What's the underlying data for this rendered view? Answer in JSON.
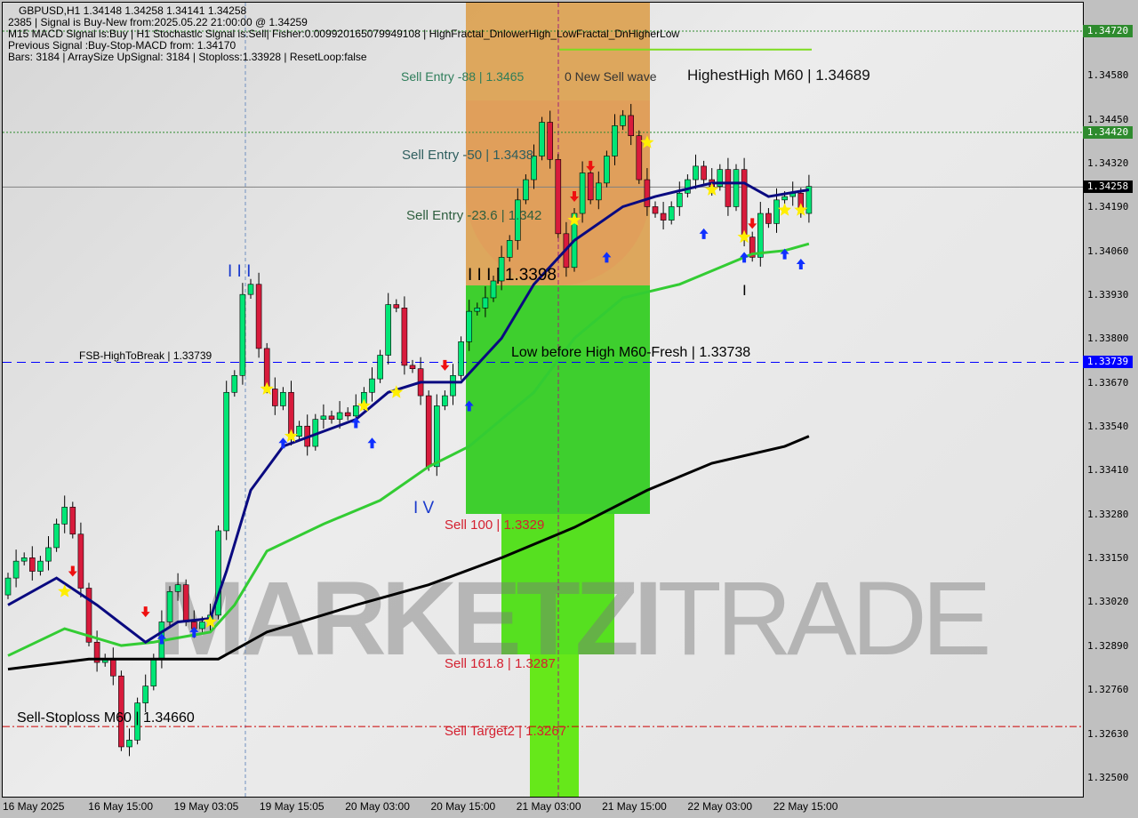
{
  "header": {
    "line1": "GBPUSD,H1  1.34148 1.34258 1.34141 1.34258",
    "line2": "2385 | Signal is Buy-New from:2025.05.22 21:00:00 @ 1.34259",
    "line3": "M15 MACD Signal is:Buy | H1 Stochastic Signal is:Sell| Fisher:0.00992016507994910​8 | HighFractal_DnlowerHigh_LowFractal_DnHigherLow",
    "line4": "Previous Signal :Buy-Stop-MACD from: 1.34170",
    "line5": "Bars: 3184 | ArraySize UpSignal: 3184 | Stoploss:1.33928 | ResetLoop:false"
  },
  "labels": {
    "new_sell_wave": "0 New Sell wave",
    "highest_high": "HighestHigh   M60 | 1.34689",
    "sell_entry_88": "Sell Entry -88 | 1.3465",
    "sell_entry_50": "Sell Entry -50 | 1.3438",
    "sell_entry_236": "Sell Entry -23.6 | 1.342",
    "wave3_price": "I I I | 1.3398",
    "wave3": "I I I",
    "wave4": "I V",
    "wave1": "I",
    "low_before_high": "Low before High   M60-Fresh | 1.33738",
    "fsb_high": "FSB-HighToBreak | 1.33739",
    "sell_100": "Sell 100 | 1.3329",
    "sell_1618": "Sell 161.8 | 1.3287",
    "sell_target2": "Sell Target2 | 1.3267",
    "sell_stoploss": "Sell-Stoploss M60 | 1.34660"
  },
  "watermark": {
    "bold": "MARKETZI",
    "thin": "TRADE"
  },
  "price_axis": {
    "ticks": [
      "1.34580",
      "1.34450",
      "1.34320",
      "1.34190",
      "1.34060",
      "1.33930",
      "1.33800",
      "1.33670",
      "1.33540",
      "1.33410",
      "1.33280",
      "1.33150",
      "1.33020",
      "1.32890",
      "1.32760",
      "1.32630",
      "1.32500"
    ],
    "markers": [
      {
        "value": "1.34720",
        "color": "#2e8b2e"
      },
      {
        "value": "1.34420",
        "color": "#2e8b2e"
      },
      {
        "value": "1.34258",
        "color": "#000000"
      },
      {
        "value": "1.33739",
        "color": "#0000ff"
      }
    ]
  },
  "time_axis": [
    "16 May 2025",
    "16 May 15:00",
    "19 May 03:05",
    "19 May 15:05",
    "20 May 03:00",
    "20 May 15:00",
    "21 May 03:00",
    "21 May 15:00",
    "22 May 03:00",
    "22 May 15:00"
  ],
  "chart_data": {
    "type": "candlestick",
    "symbol": "GBPUSD",
    "timeframe": "H1",
    "ylim": [
      1.3245,
      1.3484
    ],
    "colors": {
      "up": "#00e676",
      "down": "#d81b3c",
      "ma_fast": "#0a0a80",
      "ma_mid": "#33cc33",
      "ma_slow": "#000000"
    },
    "open_first": 1.3305,
    "close": [
      1.331,
      1.3315,
      1.3316,
      1.3312,
      1.3315,
      1.3319,
      1.3326,
      1.3331,
      1.3323,
      1.3307,
      1.3291,
      1.3285,
      1.3286,
      1.3281,
      1.326,
      1.3262,
      1.3273,
      1.3278,
      1.3286,
      1.3297,
      1.3306,
      1.3308,
      1.3297,
      1.3295,
      1.3297,
      1.3299,
      1.3324,
      1.3365,
      1.337,
      1.3394,
      1.3397,
      1.3378,
      1.3366,
      1.3361,
      1.3365,
      1.3352,
      1.3355,
      1.3349,
      1.3357,
      1.3358,
      1.3357,
      1.3359,
      1.3358,
      1.3361,
      1.3365,
      1.3369,
      1.3376,
      1.3391,
      1.339,
      1.3373,
      1.3372,
      1.3364,
      1.3343,
      1.3361,
      1.3364,
      1.337,
      1.338,
      1.3389,
      1.339,
      1.3393,
      1.3398,
      1.3405,
      1.341,
      1.3422,
      1.3428,
      1.3435,
      1.3445,
      1.3434,
      1.3412,
      1.3402,
      1.3418,
      1.343,
      1.3422,
      1.3427,
      1.3435,
      1.3444,
      1.3447,
      1.3441,
      1.3428,
      1.342,
      1.3418,
      1.3416,
      1.342,
      1.3424,
      1.3428,
      1.3432,
      1.3428,
      1.3426,
      1.3431,
      1.342,
      1.3431,
      1.3411,
      1.3405,
      1.3418,
      1.3415,
      1.3422,
      1.3423,
      1.3424,
      1.3418,
      1.3426
    ],
    "ma_fast": [
      [
        1,
        1.3302
      ],
      [
        7,
        1.331
      ],
      [
        12,
        1.3302
      ],
      [
        18,
        1.3291
      ],
      [
        22,
        1.3297
      ],
      [
        26,
        1.3298
      ],
      [
        28,
        1.3312
      ],
      [
        31,
        1.3336
      ],
      [
        35,
        1.3349
      ],
      [
        44,
        1.3357
      ],
      [
        48,
        1.3365
      ],
      [
        52,
        1.3368
      ],
      [
        57,
        1.3368
      ],
      [
        62,
        1.3381
      ],
      [
        66,
        1.3397
      ],
      [
        71,
        1.341
      ],
      [
        77,
        1.342
      ],
      [
        81,
        1.3423
      ],
      [
        88,
        1.3427
      ],
      [
        92,
        1.3427
      ],
      [
        95,
        1.3423
      ],
      [
        100,
        1.3425
      ]
    ],
    "ma_mid": [
      [
        1,
        1.3287
      ],
      [
        8,
        1.3295
      ],
      [
        15,
        1.329
      ],
      [
        19,
        1.3291
      ],
      [
        26,
        1.3294
      ],
      [
        29,
        1.3302
      ],
      [
        33,
        1.3318
      ],
      [
        40,
        1.3326
      ],
      [
        47,
        1.3333
      ],
      [
        53,
        1.3343
      ],
      [
        58,
        1.3349
      ],
      [
        62,
        1.3357
      ],
      [
        66,
        1.3365
      ],
      [
        71,
        1.3381
      ],
      [
        77,
        1.3393
      ],
      [
        84,
        1.3397
      ],
      [
        88,
        1.3401
      ],
      [
        93,
        1.3406
      ],
      [
        97,
        1.3407
      ],
      [
        100,
        1.3409
      ]
    ],
    "ma_slow": [
      [
        1,
        1.3283
      ],
      [
        11,
        1.3286
      ],
      [
        27,
        1.3286
      ],
      [
        33,
        1.3294
      ],
      [
        44,
        1.3302
      ],
      [
        53,
        1.3308
      ],
      [
        62,
        1.3316
      ],
      [
        71,
        1.3325
      ],
      [
        80,
        1.3336
      ],
      [
        88,
        1.3344
      ],
      [
        97,
        1.3349
      ],
      [
        100,
        1.3352
      ]
    ],
    "levels": [
      {
        "price": 1.3472,
        "color": "#2e8b2e",
        "style": "dotted"
      },
      {
        "price": 1.3442,
        "color": "#2e8b2e",
        "style": "dotted"
      },
      {
        "price": 1.34258,
        "color": "#808080",
        "style": "solid"
      },
      {
        "price": 1.33739,
        "color": "#0000ff",
        "style": "dashed"
      },
      {
        "price": 1.3266,
        "color": "#cc0000",
        "style": "dashdot"
      }
    ],
    "signals": [
      {
        "bar": 9,
        "price": 1.3312,
        "type": "sell-arrow"
      },
      {
        "bar": 18,
        "price": 1.33,
        "type": "sell-arrow"
      },
      {
        "bar": 55,
        "price": 1.3373,
        "type": "sell-arrow"
      },
      {
        "bar": 73,
        "price": 1.3432,
        "type": "sell-arrow"
      },
      {
        "bar": 71,
        "price": 1.3423,
        "type": "sell-arrow"
      },
      {
        "bar": 93,
        "price": 1.3415,
        "type": "sell-arrow"
      },
      {
        "bar": 20,
        "price": 1.3292,
        "type": "buy-arrow"
      },
      {
        "bar": 24,
        "price": 1.3294,
        "type": "buy-arrow"
      },
      {
        "bar": 35,
        "price": 1.335,
        "type": "buy-arrow"
      },
      {
        "bar": 44,
        "price": 1.3356,
        "type": "buy-arrow"
      },
      {
        "bar": 46,
        "price": 1.335,
        "type": "buy-arrow"
      },
      {
        "bar": 58,
        "price": 1.3361,
        "type": "buy-arrow"
      },
      {
        "bar": 75,
        "price": 1.3405,
        "type": "buy-arrow"
      },
      {
        "bar": 87,
        "price": 1.3412,
        "type": "buy-arrow"
      },
      {
        "bar": 92,
        "price": 1.3405,
        "type": "buy-arrow"
      },
      {
        "bar": 97,
        "price": 1.3406,
        "type": "buy-arrow"
      },
      {
        "bar": 99,
        "price": 1.3403,
        "type": "buy-arrow"
      },
      {
        "bar": 8,
        "price": 1.3306,
        "type": "star"
      },
      {
        "bar": 26,
        "price": 1.3297,
        "type": "star"
      },
      {
        "bar": 33,
        "price": 1.3366,
        "type": "star"
      },
      {
        "bar": 36,
        "price": 1.3352,
        "type": "star"
      },
      {
        "bar": 45,
        "price": 1.3361,
        "type": "star"
      },
      {
        "bar": 49,
        "price": 1.3365,
        "type": "star"
      },
      {
        "bar": 71,
        "price": 1.3416,
        "type": "star"
      },
      {
        "bar": 80,
        "price": 1.3439,
        "type": "star"
      },
      {
        "bar": 88,
        "price": 1.3425,
        "type": "star"
      },
      {
        "bar": 92,
        "price": 1.3411,
        "type": "star"
      },
      {
        "bar": 97,
        "price": 1.3419,
        "type": "star"
      },
      {
        "bar": 99,
        "price": 1.3419,
        "type": "star"
      }
    ]
  }
}
